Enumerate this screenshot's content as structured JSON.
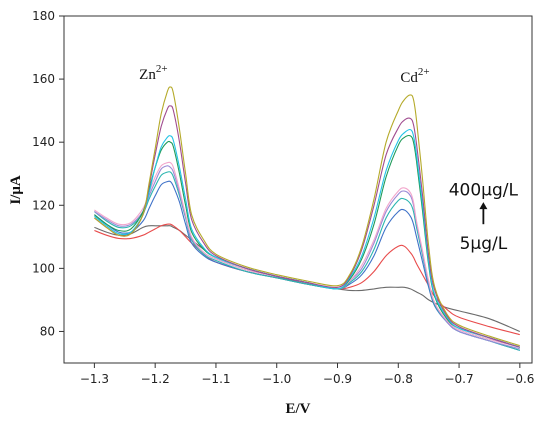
{
  "chart_data": {
    "type": "line",
    "xlabel": "E/V",
    "ylabel": "I/μA",
    "xlim": [
      -1.35,
      -0.58
    ],
    "ylim": [
      70,
      180
    ],
    "xticks": [
      -1.3,
      -1.2,
      -1.1,
      -1.0,
      -0.9,
      -0.8,
      -0.7,
      -0.6
    ],
    "xtick_labels": [
      "−1.3",
      "−1.2",
      "−1.1",
      "−1.0",
      "−0.9",
      "−0.8",
      "−0.7",
      "−0.6"
    ],
    "yticks": [
      80,
      100,
      120,
      140,
      160,
      180
    ],
    "legend": "none",
    "annotations": {
      "zn": {
        "base": "Zn",
        "sup": "2+",
        "x": -1.2,
        "y": 160
      },
      "cd": {
        "base": "Cd",
        "sup": "2+",
        "x": -0.79,
        "y": 159
      },
      "conc_high": {
        "text": "400μg/L",
        "x": -0.66,
        "y": 125
      },
      "conc_low": {
        "text": "5μg/L",
        "x": -0.66,
        "y": 108
      }
    },
    "x": [
      -1.3,
      -1.28,
      -1.26,
      -1.24,
      -1.22,
      -1.21,
      -1.2,
      -1.19,
      -1.18,
      -1.175,
      -1.17,
      -1.16,
      -1.15,
      -1.14,
      -1.12,
      -1.1,
      -1.05,
      -1.0,
      -0.95,
      -0.9,
      -0.88,
      -0.86,
      -0.84,
      -0.82,
      -0.8,
      -0.79,
      -0.78,
      -0.775,
      -0.77,
      -0.76,
      -0.75,
      -0.74,
      -0.72,
      -0.7,
      -0.65,
      -0.6
    ],
    "series": [
      {
        "color": "#6b6b6b",
        "values": [
          113,
          111.5,
          110.5,
          111,
          113,
          113.5,
          113.5,
          113.5,
          113.5,
          113.5,
          113,
          112,
          110.5,
          109,
          106,
          103.5,
          100,
          97.5,
          95,
          93.5,
          93,
          93,
          93.5,
          94,
          94,
          94,
          93.5,
          93,
          92.5,
          91.5,
          90,
          89,
          87.5,
          86.5,
          84,
          80
        ]
      },
      {
        "color": "#e84c4c",
        "values": [
          112,
          110.5,
          109.5,
          109.5,
          110.5,
          111.5,
          112.5,
          113.5,
          114,
          114,
          113.5,
          112,
          110,
          108,
          104.5,
          102,
          99,
          97,
          95,
          93.5,
          94,
          95.5,
          99,
          104,
          107,
          107,
          105,
          103.5,
          101.5,
          98,
          94.5,
          91,
          87,
          84.5,
          81.5,
          79
        ]
      },
      {
        "color": "#3f72c8",
        "values": [
          117,
          114,
          111.5,
          111.5,
          115,
          119,
          123,
          126.5,
          127.5,
          127.5,
          126,
          121,
          114,
          108,
          104,
          102,
          99,
          97,
          95,
          93.5,
          95,
          98,
          104,
          113,
          118,
          118.5,
          116.5,
          114,
          110,
          102,
          94,
          88,
          83,
          80,
          77,
          74
        ]
      },
      {
        "color": "#2bb5b0",
        "values": [
          118,
          115,
          113,
          113.5,
          117.5,
          122,
          126,
          129.5,
          130.5,
          130.5,
          129,
          123,
          116,
          109,
          104.5,
          102.5,
          99,
          97,
          95,
          93.5,
          95.5,
          99,
          106,
          116,
          121.5,
          122,
          120.5,
          118,
          113,
          104,
          95,
          88.5,
          83,
          80,
          77,
          74
        ]
      },
      {
        "color": "#9b8ad6",
        "values": [
          118,
          115.5,
          113.5,
          114,
          118,
          123,
          127.5,
          131.5,
          132.5,
          132,
          130.5,
          124,
          116.5,
          109.5,
          105,
          103,
          99.5,
          97.5,
          95.5,
          93.5,
          96,
          100,
          108,
          118,
          123.5,
          124.5,
          123,
          120,
          114.5,
          105,
          95.5,
          89,
          83,
          80,
          77,
          74.5
        ]
      },
      {
        "color": "#f2a6cc",
        "values": [
          118.5,
          116,
          114,
          114.5,
          119,
          124,
          129,
          132.5,
          133.5,
          133.5,
          132,
          125,
          117,
          110,
          105,
          103,
          99.5,
          97.5,
          95.5,
          93.5,
          96,
          101,
          109,
          119,
          124.5,
          125.5,
          124,
          121,
          115,
          105.5,
          96,
          89,
          83.5,
          80.5,
          77.5,
          75
        ]
      },
      {
        "color": "#1f9a58",
        "values": [
          117,
          114,
          112,
          112.5,
          118,
          125,
          132,
          137.5,
          140,
          140,
          138.5,
          130,
          120,
          111.5,
          106,
          103.5,
          100,
          97.5,
          95.5,
          93.5,
          96.5,
          103,
          114,
          129,
          139,
          141.5,
          142,
          140,
          134,
          118,
          101,
          91,
          84,
          81,
          78,
          75
        ]
      },
      {
        "color": "#22c4e6",
        "values": [
          116.5,
          113.5,
          111,
          111.5,
          117,
          124,
          132,
          138.5,
          141.5,
          142,
          140.5,
          132,
          122,
          112.5,
          106.5,
          103.5,
          100,
          97.5,
          95.5,
          93.5,
          97,
          104,
          116,
          131,
          140.5,
          143,
          144,
          142,
          136,
          120,
          102,
          91.5,
          84.5,
          81,
          78,
          75
        ]
      },
      {
        "color": "#a04c8f",
        "values": [
          116,
          113,
          110.5,
          111,
          117,
          126,
          136,
          145,
          150.5,
          151.5,
          150,
          140,
          127,
          115.5,
          108,
          104,
          100,
          97.5,
          95.5,
          94,
          97.5,
          106,
          120,
          136,
          144.5,
          147,
          147.5,
          145.5,
          139.5,
          123,
          104,
          93,
          85,
          81.5,
          78,
          75
        ]
      },
      {
        "color": "#b5aa2a",
        "values": [
          116,
          113,
          110.5,
          111,
          117,
          127,
          138,
          149,
          156,
          157.5,
          155.5,
          144,
          130,
          117,
          109,
          104.5,
          100.5,
          98,
          96,
          94.5,
          98,
          107,
          122,
          140,
          150,
          153.5,
          155,
          153.5,
          147,
          128,
          107,
          94,
          85.5,
          82,
          78.5,
          75.5
        ]
      }
    ]
  }
}
